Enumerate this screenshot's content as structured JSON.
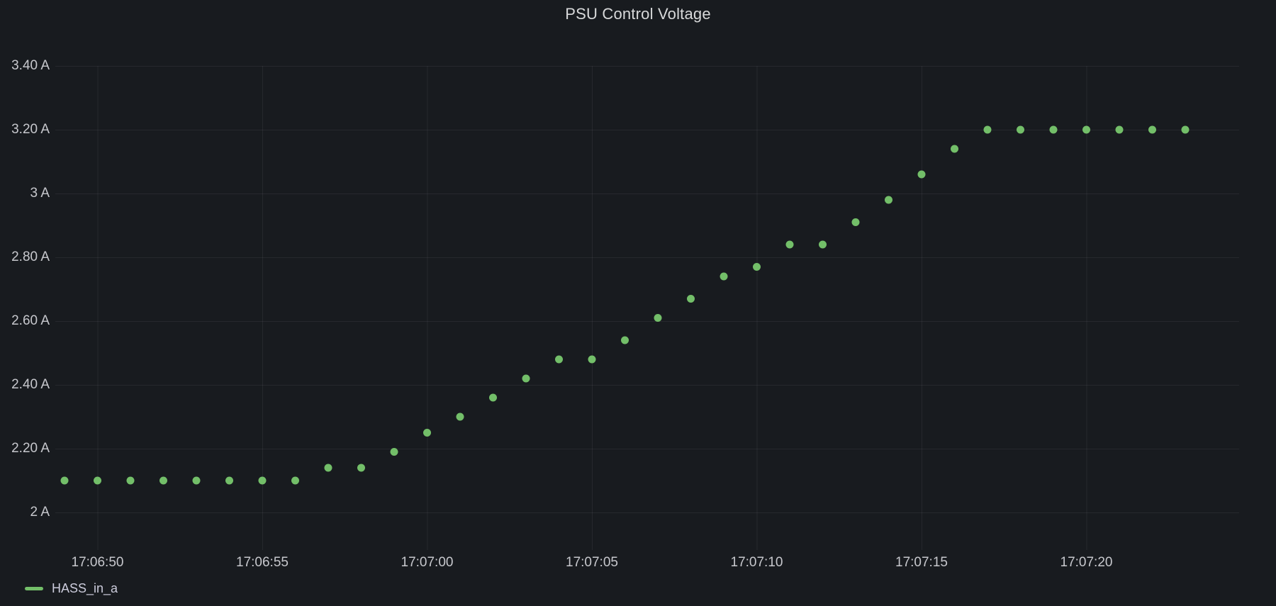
{
  "panel": {
    "title": "PSU Control Voltage"
  },
  "legend": {
    "series": [
      {
        "label": "HASS_in_a",
        "color": "#73bf69"
      }
    ]
  },
  "colors": {
    "background": "#181b1f",
    "grid": "rgba(204,204,220,0.08)",
    "tick_text": "#c7c8cd",
    "title_text": "#d8d9da",
    "series_green": "#73bf69"
  },
  "chart_data": {
    "type": "scatter",
    "title": "PSU Control Voltage",
    "xlabel": "",
    "ylabel": "",
    "grid": true,
    "legend_position": "bottom-left",
    "x_tick_labels": [
      "17:06:50",
      "17:06:55",
      "17:07:00",
      "17:07:05",
      "17:07:10",
      "17:07:15",
      "17:07:20"
    ],
    "y_tick_labels": [
      "2 A",
      "2.20 A",
      "2.40 A",
      "2.60 A",
      "2.80 A",
      "3 A",
      "3.20 A",
      "3.40 A"
    ],
    "y_tick_values": [
      2.0,
      2.2,
      2.4,
      2.6,
      2.8,
      3.0,
      3.2,
      3.4
    ],
    "ylim": [
      1.88,
      3.4
    ],
    "xlim": [
      "17:06:48.7",
      "17:07:24.7"
    ],
    "series": [
      {
        "name": "HASS_in_a",
        "color": "#73bf69",
        "point_radius": 5.5,
        "x": [
          "17:06:49",
          "17:06:50",
          "17:06:51",
          "17:06:52",
          "17:06:53",
          "17:06:54",
          "17:06:55",
          "17:06:56",
          "17:06:57",
          "17:06:58",
          "17:06:59",
          "17:07:00",
          "17:07:01",
          "17:07:02",
          "17:07:03",
          "17:07:04",
          "17:07:05",
          "17:07:06",
          "17:07:07",
          "17:07:08",
          "17:07:09",
          "17:07:10",
          "17:07:11",
          "17:07:12",
          "17:07:13",
          "17:07:14",
          "17:07:15",
          "17:07:16",
          "17:07:17",
          "17:07:18",
          "17:07:19",
          "17:07:20",
          "17:07:21",
          "17:07:22",
          "17:07:23"
        ],
        "values": [
          2.1,
          2.1,
          2.1,
          2.1,
          2.1,
          2.1,
          2.1,
          2.1,
          2.14,
          2.14,
          2.19,
          2.25,
          2.3,
          2.36,
          2.42,
          2.48,
          2.48,
          2.54,
          2.61,
          2.67,
          2.74,
          2.77,
          2.84,
          2.84,
          2.91,
          2.98,
          3.06,
          3.14,
          3.2,
          3.2,
          3.2,
          3.2,
          3.2,
          3.2,
          3.2
        ]
      }
    ]
  }
}
